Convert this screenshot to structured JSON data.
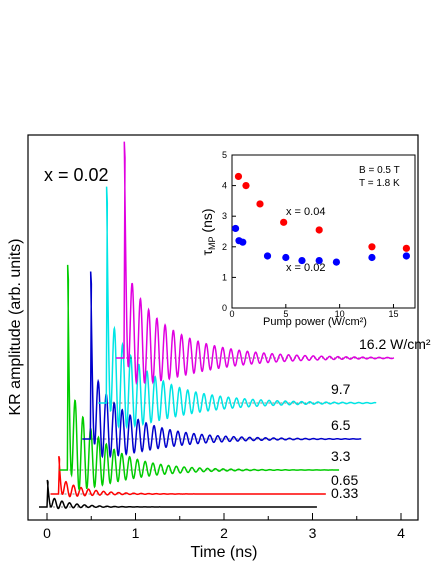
{
  "chart_data": [
    {
      "type": "line",
      "xlabel": "Time (ns)",
      "ylabel": "KR amplitude  (arb. units)",
      "xlim": [
        -0.2,
        4.0
      ],
      "xticks": [
        "0",
        "1",
        "2",
        "3",
        "4"
      ],
      "xtick_values": [
        0,
        1,
        2,
        3,
        4
      ],
      "annotation": "x = 0.02",
      "y_values_shown": false,
      "series": [
        {
          "name": "0.33",
          "color": "#000000",
          "offset_ns": 0.0,
          "end_ns": 3.05,
          "peak": 0.35,
          "decay_ns": 0.25,
          "period_ns": 0.085
        },
        {
          "name": "0.65",
          "color": "#ff0000",
          "offset_ns": 0.13,
          "end_ns": 3.15,
          "peak": 0.45,
          "decay_ns": 0.3,
          "period_ns": 0.085
        },
        {
          "name": "3.3",
          "color": "#00cc00",
          "offset_ns": 0.23,
          "end_ns": 3.3,
          "peak": 1.0,
          "decay_ns": 0.45,
          "period_ns": 0.088
        },
        {
          "name": "6.5",
          "color": "#0000cc",
          "offset_ns": 0.49,
          "end_ns": 3.55,
          "peak": 0.9,
          "decay_ns": 0.55,
          "period_ns": 0.09
        },
        {
          "name": "9.7",
          "color": "#00e5e5",
          "offset_ns": 0.67,
          "end_ns": 3.72,
          "peak": 1.0,
          "decay_ns": 0.6,
          "period_ns": 0.092
        },
        {
          "name": "16.2 W/cm²",
          "color": "#e000e0",
          "offset_ns": 0.87,
          "end_ns": 3.92,
          "peak": 1.0,
          "decay_ns": 0.65,
          "period_ns": 0.093
        }
      ]
    },
    {
      "type": "scatter",
      "xlabel": "Pump power  (W/cm²)",
      "ylabel": "τMP (ns)",
      "xlim": [
        0,
        17
      ],
      "ylim": [
        0,
        5
      ],
      "xticks": [
        0,
        5,
        10,
        15
      ],
      "yticks": [
        0,
        1,
        2,
        3,
        4,
        5
      ],
      "annotations": [
        "B = 0.5 T",
        "T = 1.8 K"
      ],
      "series": [
        {
          "name": "x = 0.04",
          "color": "#ff0000",
          "points": [
            [
              0.6,
              4.3
            ],
            [
              1.3,
              4.0
            ],
            [
              2.6,
              3.4
            ],
            [
              4.8,
              2.8
            ],
            [
              8.1,
              2.55
            ],
            [
              13.0,
              2.0
            ],
            [
              16.2,
              1.95
            ]
          ]
        },
        {
          "name": "x = 0.02",
          "color": "#0000ff",
          "points": [
            [
              0.33,
              2.6
            ],
            [
              0.65,
              2.2
            ],
            [
              1.0,
              2.15
            ],
            [
              3.3,
              1.7
            ],
            [
              5.0,
              1.65
            ],
            [
              6.5,
              1.55
            ],
            [
              8.1,
              1.55
            ],
            [
              9.7,
              1.5
            ],
            [
              13.0,
              1.65
            ],
            [
              16.2,
              1.7
            ]
          ]
        }
      ]
    }
  ]
}
